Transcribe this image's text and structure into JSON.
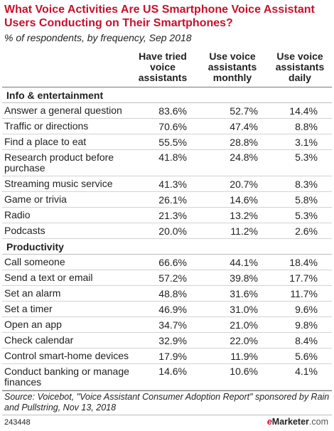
{
  "chart_data": {
    "type": "table",
    "title": "What Voice Activities Are US Smartphone Voice Assistant Users Conducting on Their Smartphones?",
    "subtitle": "% of respondents, by frequency, Sep 2018",
    "columns": [
      "Have tried voice assistants",
      "Use voice assistants monthly",
      "Use voice assistants daily"
    ],
    "sections": [
      {
        "name": "Info & entertainment",
        "rows": [
          {
            "label": "Answer a general question",
            "values": [
              "83.6%",
              "52.7%",
              "14.4%"
            ]
          },
          {
            "label": "Traffic or directions",
            "values": [
              "70.6%",
              "47.4%",
              "8.8%"
            ]
          },
          {
            "label": "Find a place to eat",
            "values": [
              "55.5%",
              "28.8%",
              "3.1%"
            ]
          },
          {
            "label": "Research product before purchase",
            "values": [
              "41.8%",
              "24.8%",
              "5.3%"
            ]
          },
          {
            "label": "Streaming music service",
            "values": [
              "41.3%",
              "20.7%",
              "8.3%"
            ]
          },
          {
            "label": "Game or trivia",
            "values": [
              "26.1%",
              "14.6%",
              "5.8%"
            ]
          },
          {
            "label": "Radio",
            "values": [
              "21.3%",
              "13.2%",
              "5.3%"
            ]
          },
          {
            "label": "Podcasts",
            "values": [
              "20.0%",
              "11.2%",
              "2.6%"
            ]
          }
        ]
      },
      {
        "name": "Productivity",
        "rows": [
          {
            "label": "Call someone",
            "values": [
              "66.6%",
              "44.1%",
              "18.4%"
            ]
          },
          {
            "label": "Send a text or email",
            "values": [
              "57.2%",
              "39.8%",
              "17.7%"
            ]
          },
          {
            "label": "Set an alarm",
            "values": [
              "48.8%",
              "31.6%",
              "11.7%"
            ]
          },
          {
            "label": "Set a timer",
            "values": [
              "46.9%",
              "31.0%",
              "9.6%"
            ]
          },
          {
            "label": "Open an app",
            "values": [
              "34.7%",
              "21.0%",
              "9.8%"
            ]
          },
          {
            "label": "Check calendar",
            "values": [
              "32.9%",
              "22.0%",
              "8.4%"
            ]
          },
          {
            "label": "Control smart-home devices",
            "values": [
              "17.9%",
              "11.9%",
              "5.6%"
            ]
          },
          {
            "label": "Conduct banking or manage finances",
            "values": [
              "14.6%",
              "10.6%",
              "4.1%"
            ]
          }
        ]
      }
    ],
    "source": "Source: Voicebot, \"Voice Assistant Consumer Adoption Report\" sponsored by Rain and Pullstring, Nov 13, 2018",
    "chart_id": "243448"
  },
  "brand": {
    "e": "e",
    "name": "Marketer",
    "suffix": ".com"
  },
  "colors": {
    "title": "#c8102e",
    "text": "#222222",
    "rule": "#bdbdbd"
  }
}
